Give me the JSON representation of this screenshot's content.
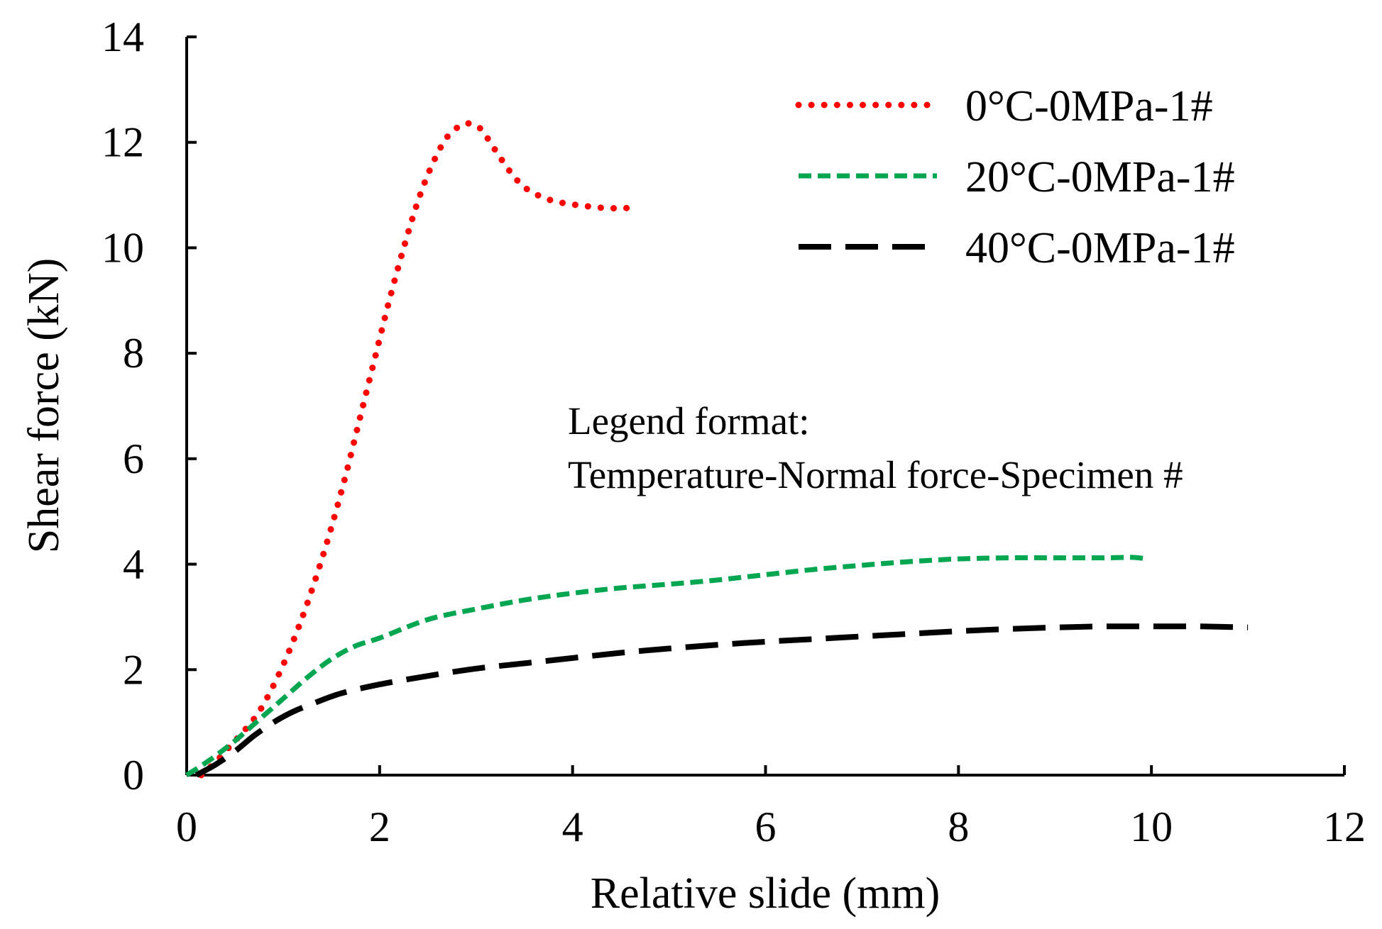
{
  "chart_data": {
    "type": "line",
    "title": "",
    "xlabel": "Relative slide (mm)",
    "ylabel": "Shear force (kN)",
    "xlim": [
      0,
      12
    ],
    "ylim": [
      0,
      14
    ],
    "x_ticks": [
      0,
      2,
      4,
      6,
      8,
      10,
      12
    ],
    "y_ticks": [
      0,
      2,
      4,
      6,
      8,
      10,
      12,
      14
    ],
    "x_tick_labels": [
      "0",
      "2",
      "4",
      "6",
      "8",
      "10",
      "12"
    ],
    "y_tick_labels": [
      "0",
      "2",
      "4",
      "6",
      "8",
      "10",
      "12",
      "14"
    ],
    "grid": false,
    "legend_position": "top-right",
    "annotation": {
      "line1": "Legend format:",
      "line2": "Temperature-Normal force-Specimen #"
    },
    "series": [
      {
        "name": "0°C-0MPa-1#",
        "color": "#ff0000",
        "style": "dotted",
        "x": [
          0.15,
          0.3,
          0.45,
          0.6,
          0.75,
          0.9,
          1.05,
          1.2,
          1.35,
          1.5,
          1.65,
          1.8,
          1.95,
          2.1,
          2.25,
          2.4,
          2.55,
          2.7,
          2.85,
          2.95,
          3.05,
          3.2,
          3.35,
          3.5,
          3.7,
          3.9,
          4.1,
          4.3,
          4.5,
          4.6
        ],
        "y": [
          0.0,
          0.25,
          0.55,
          0.85,
          1.2,
          1.7,
          2.3,
          3.0,
          3.8,
          4.7,
          5.7,
          6.8,
          7.9,
          9.0,
          10.0,
          10.9,
          11.6,
          12.1,
          12.33,
          12.35,
          12.25,
          11.85,
          11.45,
          11.15,
          10.95,
          10.85,
          10.8,
          10.76,
          10.75,
          10.76
        ]
      },
      {
        "name": "20°C-0MPa-1#",
        "color": "#00a650",
        "style": "short-dash",
        "x": [
          0.0,
          0.25,
          0.5,
          0.75,
          1.0,
          1.25,
          1.5,
          1.75,
          2.0,
          2.5,
          3.0,
          3.5,
          4.0,
          4.5,
          5.0,
          5.5,
          6.0,
          6.5,
          7.0,
          7.5,
          8.0,
          8.5,
          9.0,
          9.5,
          9.8,
          9.95
        ],
        "y": [
          0.0,
          0.3,
          0.65,
          1.05,
          1.45,
          1.85,
          2.2,
          2.45,
          2.6,
          2.95,
          3.15,
          3.32,
          3.45,
          3.55,
          3.62,
          3.7,
          3.8,
          3.9,
          3.98,
          4.05,
          4.1,
          4.12,
          4.12,
          4.12,
          4.13,
          4.1
        ]
      },
      {
        "name": "40°C-0MPa-1#",
        "color": "#000000",
        "style": "long-dash",
        "x": [
          0.1,
          0.3,
          0.5,
          0.7,
          0.9,
          1.1,
          1.3,
          1.6,
          2.0,
          2.5,
          3.0,
          3.5,
          4.0,
          4.5,
          5.0,
          5.5,
          6.0,
          6.5,
          7.0,
          7.5,
          8.0,
          8.5,
          9.0,
          9.5,
          10.0,
          10.5,
          11.0
        ],
        "y": [
          0.0,
          0.2,
          0.45,
          0.75,
          1.0,
          1.2,
          1.35,
          1.55,
          1.72,
          1.88,
          2.02,
          2.12,
          2.22,
          2.32,
          2.4,
          2.47,
          2.53,
          2.58,
          2.63,
          2.68,
          2.73,
          2.77,
          2.8,
          2.82,
          2.82,
          2.82,
          2.8
        ]
      }
    ]
  }
}
